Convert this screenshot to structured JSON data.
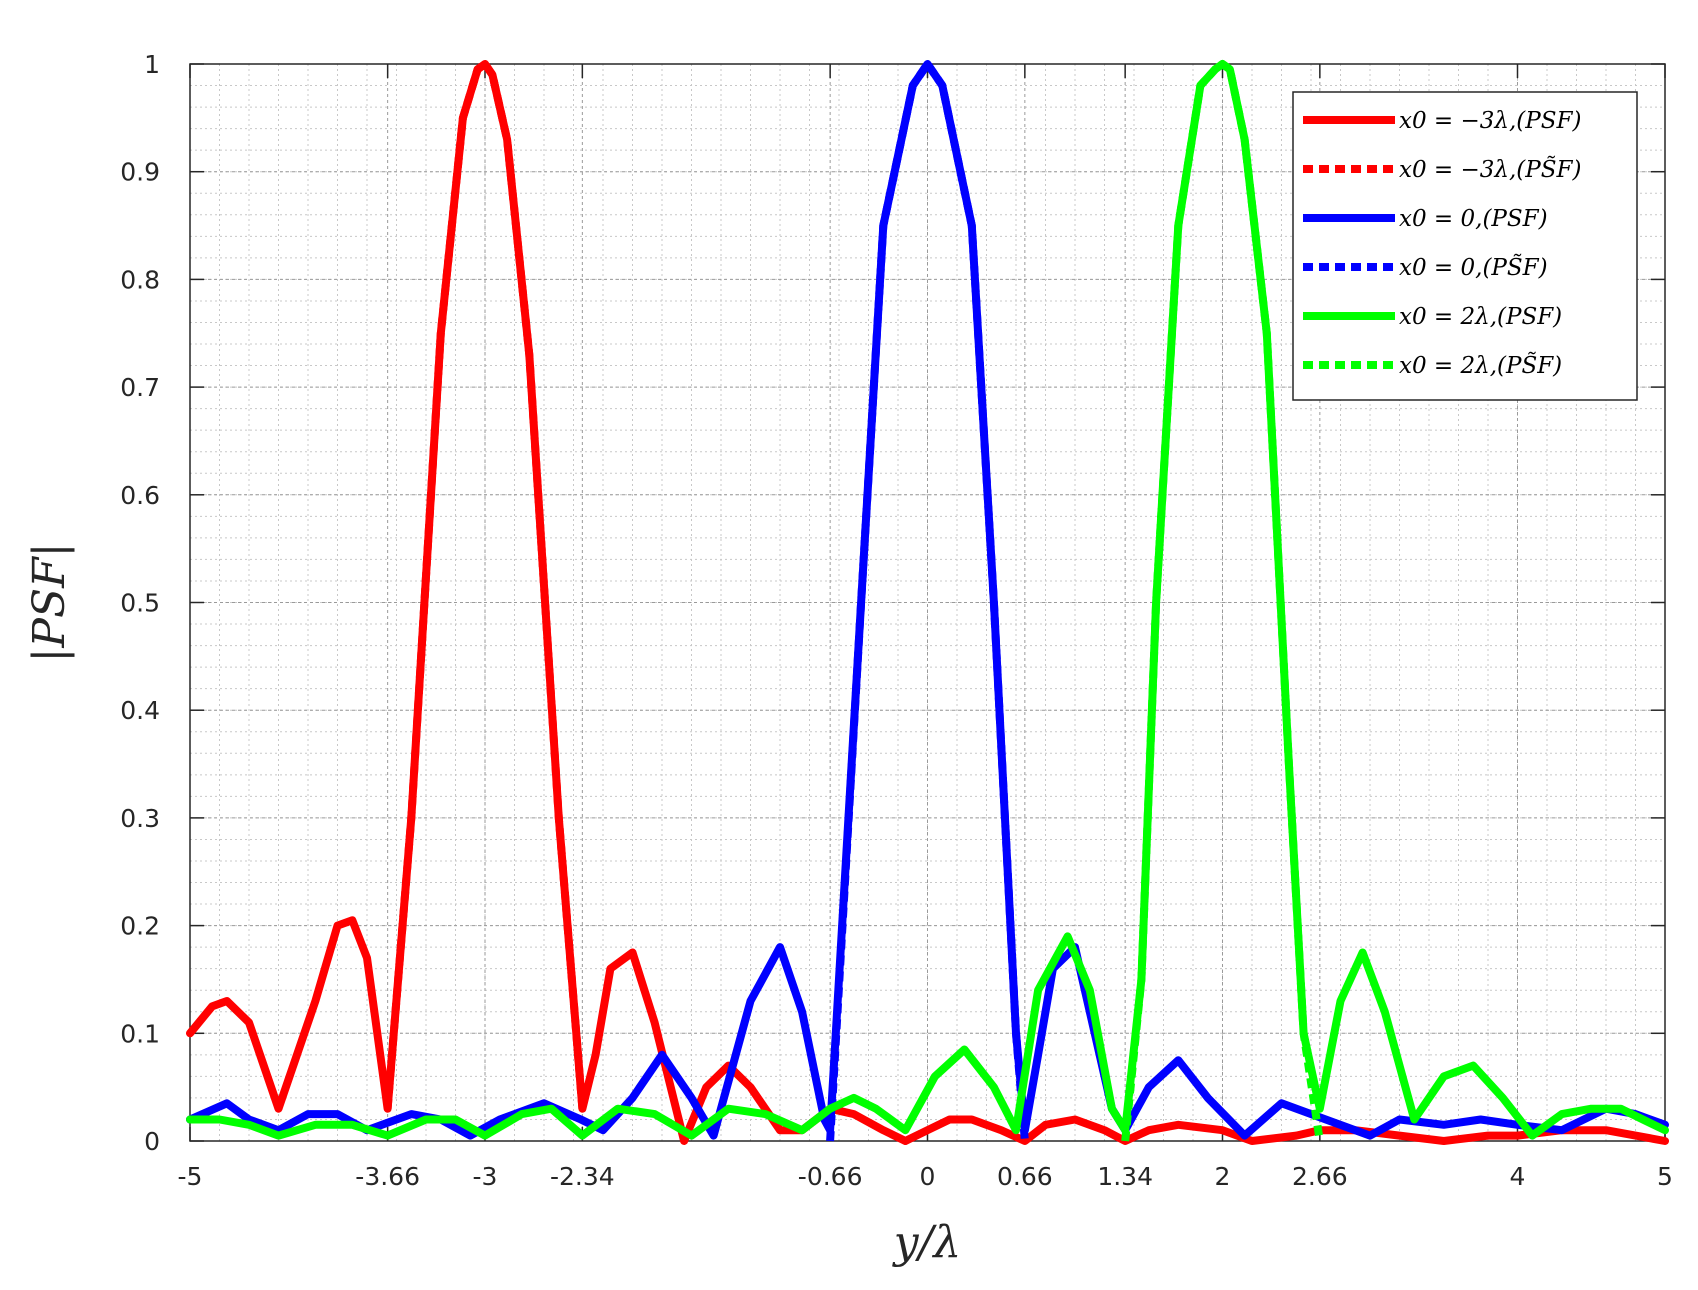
{
  "chart_data": {
    "type": "line",
    "xlabel": "y/λ",
    "ylabel": "|PSF|",
    "xlim": [
      -5,
      5
    ],
    "ylim": [
      0,
      1
    ],
    "x_ticks": [
      -5,
      -3.66,
      -3,
      -2.34,
      -0.66,
      0,
      0.66,
      1.34,
      2,
      2.66,
      4,
      5
    ],
    "x_tick_labels": [
      "-5",
      "-3.66",
      "-3",
      "-2.34",
      "-0.66",
      "0",
      "0.66",
      "1.34",
      "2",
      "2.66",
      "4",
      "5"
    ],
    "y_ticks": [
      0,
      0.1,
      0.2,
      0.3,
      0.4,
      0.5,
      0.6,
      0.7,
      0.8,
      0.9,
      1
    ],
    "y_tick_labels": [
      "0",
      "0.1",
      "0.2",
      "0.3",
      "0.4",
      "0.5",
      "0.6",
      "0.7",
      "0.8",
      "0.9",
      "1"
    ],
    "grid": "major and minor, dotted",
    "legend_position": "top-right",
    "series": [
      {
        "name": "x0 = −3λ,(PSF)",
        "color": "#ff0000",
        "style": "solid",
        "x": [
          -5,
          -4.85,
          -4.75,
          -4.6,
          -4.4,
          -4.15,
          -4,
          -3.9,
          -3.8,
          -3.66,
          -3.5,
          -3.3,
          -3.15,
          -3.05,
          -3,
          -2.95,
          -2.85,
          -2.7,
          -2.5,
          -2.34,
          -2.25,
          -2.15,
          -2,
          -1.85,
          -1.65,
          -1.5,
          -1.35,
          -1.2,
          -1.0,
          -0.85,
          -0.66,
          -0.5,
          -0.3,
          -0.15,
          0,
          0.15,
          0.3,
          0.5,
          0.66,
          0.8,
          1.0,
          1.2,
          1.34,
          1.5,
          1.7,
          2.0,
          2.2,
          2.5,
          2.66,
          2.9,
          3.2,
          3.5,
          3.8,
          4.0,
          4.3,
          4.6,
          5
        ],
        "y": [
          0.1,
          0.125,
          0.13,
          0.11,
          0.03,
          0.13,
          0.2,
          0.205,
          0.17,
          0.03,
          0.3,
          0.75,
          0.95,
          0.995,
          1.0,
          0.99,
          0.93,
          0.73,
          0.3,
          0.03,
          0.08,
          0.16,
          0.175,
          0.11,
          0.0,
          0.05,
          0.07,
          0.05,
          0.01,
          0.01,
          0.03,
          0.025,
          0.01,
          0.0,
          0.01,
          0.02,
          0.02,
          0.01,
          0.0,
          0.015,
          0.02,
          0.01,
          0.0,
          0.01,
          0.015,
          0.01,
          0.0,
          0.005,
          0.01,
          0.01,
          0.005,
          0.0,
          0.005,
          0.005,
          0.01,
          0.01,
          0.0
        ]
      },
      {
        "name": "x0 = −3λ,(PS̃F)",
        "color": "#ff0000",
        "style": "dotted",
        "x": [
          -3.66,
          -3.5,
          -3.3,
          -3.15,
          -3.05,
          -3,
          -2.95,
          -2.85,
          -2.7,
          -2.5,
          -2.34
        ],
        "y": [
          0.03,
          0.3,
          0.75,
          0.95,
          0.995,
          1.0,
          0.99,
          0.93,
          0.73,
          0.3,
          0.03
        ]
      },
      {
        "name": "x0 = 0,(PSF)",
        "color": "#0000ff",
        "style": "solid",
        "x": [
          -5,
          -4.75,
          -4.6,
          -4.4,
          -4.2,
          -4.0,
          -3.8,
          -3.5,
          -3.3,
          -3.1,
          -2.9,
          -2.6,
          -2.35,
          -2.2,
          -2.0,
          -1.8,
          -1.6,
          -1.45,
          -1.2,
          -1.0,
          -0.85,
          -0.7,
          -0.66,
          -0.45,
          -0.3,
          -0.1,
          0,
          0.1,
          0.3,
          0.45,
          0.6,
          0.66,
          0.75,
          0.85,
          1.0,
          1.1,
          1.25,
          1.34,
          1.5,
          1.7,
          1.9,
          2.15,
          2.4,
          2.7,
          3.0,
          3.2,
          3.5,
          3.75,
          4.0,
          4.3,
          4.6,
          4.8,
          5
        ],
        "y": [
          0.02,
          0.035,
          0.02,
          0.01,
          0.025,
          0.025,
          0.01,
          0.025,
          0.02,
          0.005,
          0.02,
          0.035,
          0.02,
          0.01,
          0.04,
          0.08,
          0.04,
          0.005,
          0.13,
          0.18,
          0.12,
          0.02,
          0.01,
          0.5,
          0.85,
          0.98,
          1.0,
          0.98,
          0.85,
          0.5,
          0.1,
          0.01,
          0.08,
          0.16,
          0.18,
          0.12,
          0.03,
          0.01,
          0.05,
          0.075,
          0.04,
          0.005,
          0.035,
          0.02,
          0.005,
          0.02,
          0.015,
          0.02,
          0.015,
          0.01,
          0.03,
          0.025,
          0.015
        ]
      },
      {
        "name": "x0 = 0,(PS̃F)",
        "color": "#0000ff",
        "style": "dotted",
        "x": [
          -0.66,
          -0.45,
          -0.3,
          -0.1,
          0,
          0.1,
          0.3,
          0.45,
          0.6,
          0.66
        ],
        "y": [
          0.0,
          0.5,
          0.85,
          0.98,
          1.0,
          0.98,
          0.85,
          0.5,
          0.1,
          0.0
        ]
      },
      {
        "name": "x0 = 2λ,(PSF)",
        "color": "#00ff00",
        "style": "solid",
        "x": [
          -5,
          -4.8,
          -4.6,
          -4.4,
          -4.15,
          -3.9,
          -3.66,
          -3.4,
          -3.2,
          -3.0,
          -2.75,
          -2.55,
          -2.34,
          -2.1,
          -1.85,
          -1.6,
          -1.35,
          -1.1,
          -0.85,
          -0.66,
          -0.5,
          -0.35,
          -0.15,
          0.05,
          0.25,
          0.45,
          0.6,
          0.75,
          0.95,
          1.1,
          1.25,
          1.34,
          1.45,
          1.55,
          1.7,
          1.85,
          1.95,
          2.0,
          2.05,
          2.15,
          2.3,
          2.45,
          2.55,
          2.66,
          2.8,
          2.95,
          3.1,
          3.3,
          3.5,
          3.7,
          3.9,
          4.1,
          4.3,
          4.5,
          4.7,
          4.85,
          5
        ],
        "y": [
          0.02,
          0.02,
          0.015,
          0.005,
          0.015,
          0.015,
          0.005,
          0.02,
          0.02,
          0.005,
          0.025,
          0.03,
          0.005,
          0.03,
          0.025,
          0.005,
          0.03,
          0.025,
          0.01,
          0.03,
          0.04,
          0.03,
          0.01,
          0.06,
          0.085,
          0.05,
          0.01,
          0.14,
          0.19,
          0.14,
          0.03,
          0.01,
          0.15,
          0.5,
          0.85,
          0.98,
          0.995,
          1.0,
          0.995,
          0.93,
          0.75,
          0.35,
          0.1,
          0.03,
          0.13,
          0.175,
          0.12,
          0.02,
          0.06,
          0.07,
          0.04,
          0.005,
          0.025,
          0.03,
          0.03,
          0.02,
          0.01
        ]
      },
      {
        "name": "x0 = 2λ,(PS̃F)",
        "color": "#00ff00",
        "style": "dotted",
        "x": [
          1.34,
          1.45,
          1.55,
          1.7,
          1.85,
          1.95,
          2.0,
          2.05,
          2.15,
          2.3,
          2.45,
          2.55,
          2.66
        ],
        "y": [
          0.0,
          0.15,
          0.5,
          0.85,
          0.98,
          0.995,
          1.0,
          0.995,
          0.93,
          0.75,
          0.35,
          0.1,
          0.0
        ]
      }
    ]
  }
}
